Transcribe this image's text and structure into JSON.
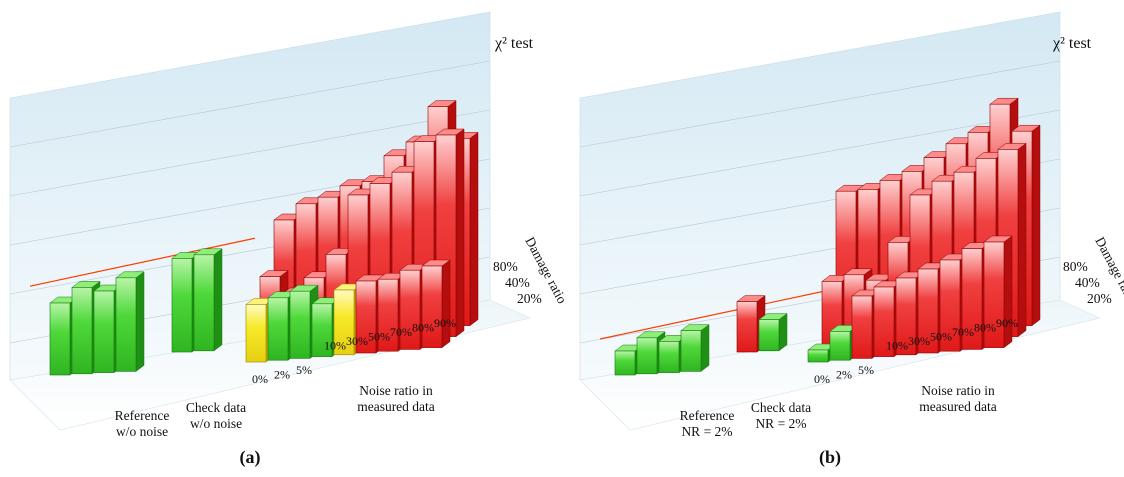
{
  "chart_data": [
    {
      "type": "bar",
      "panel_label": "(a)",
      "test_label": "χ² test",
      "depth_title": "Damage ratio",
      "depth_ticks": [
        "80%",
        "40%",
        "20%"
      ],
      "group_labels": {
        "reference": [
          "Reference",
          "w/o noise"
        ],
        "check": [
          "Check data",
          "w/o noise"
        ],
        "noise_axis": [
          "Noise ratio  in",
          "measured data"
        ]
      },
      "noise_ticks": [
        "0%",
        "2%",
        "5%",
        "10%",
        "30%",
        "50%",
        "70%",
        "80%",
        "90%"
      ],
      "threshold_line": 3.7,
      "ylim": [
        0,
        10
      ],
      "rows": [
        {
          "damage": "80%",
          "reference": [
            3.0,
            3.6,
            3.4,
            3.9
          ],
          "check": [
            3.9,
            4.0
          ],
          "measured": [
            2.4,
            2.6,
            2.8,
            2.2,
            2.7,
            3.0,
            3.0,
            3.3,
            3.4
          ]
        },
        {
          "damage": "40%",
          "reference": [],
          "check": [],
          "measured": [
            3.1,
            2.3,
            2.9,
            3.8,
            6.2,
            6.6,
            7.0,
            8.2,
            8.4
          ]
        },
        {
          "damage": "20%",
          "reference": [],
          "check": [],
          "measured": [
            5.0,
            5.6,
            5.8,
            6.2,
            6.3,
            7.3,
            7.8,
            9.2,
            7.8
          ]
        }
      ],
      "colors": {
        "pass": "#44cc33",
        "marginal": "#f0e020",
        "fail": "#ee2222"
      }
    },
    {
      "type": "bar",
      "panel_label": "(b)",
      "test_label": "χ² test",
      "depth_title": "Damage ratio",
      "depth_ticks": [
        "80%",
        "40%",
        "20%"
      ],
      "group_labels": {
        "reference": [
          "Reference",
          "NR = 2%"
        ],
        "check": [
          "Check data",
          "NR = 2%"
        ],
        "noise_axis": [
          "Noise ratio  in",
          "measured data"
        ]
      },
      "noise_ticks": [
        "0%",
        "2%",
        "5%",
        "10%",
        "30%",
        "50%",
        "70%",
        "80%",
        "90%"
      ],
      "threshold_line": 1.5,
      "ylim": [
        0,
        10
      ],
      "rows": [
        {
          "damage": "80%",
          "reference": [
            1.0,
            1.5,
            1.3,
            1.7
          ],
          "check": [
            2.1,
            1.3
          ],
          "measured": [
            0.5,
            1.2,
            2.6,
            2.9,
            3.2,
            3.5,
            3.8,
            4.2,
            4.4
          ]
        },
        {
          "damage": "40%",
          "reference": [],
          "check": [],
          "measured": [
            2.9,
            3.1,
            2.8,
            4.3,
            6.2,
            6.7,
            7.0,
            7.5,
            7.8
          ]
        },
        {
          "damage": "20%",
          "reference": [],
          "check": [],
          "measured": [
            6.2,
            6.2,
            6.5,
            6.8,
            7.3,
            7.8,
            8.2,
            9.3,
            8.1
          ]
        }
      ],
      "colors": {
        "pass": "#44cc33",
        "marginal": "#f0e020",
        "fail": "#ee2222"
      }
    }
  ]
}
